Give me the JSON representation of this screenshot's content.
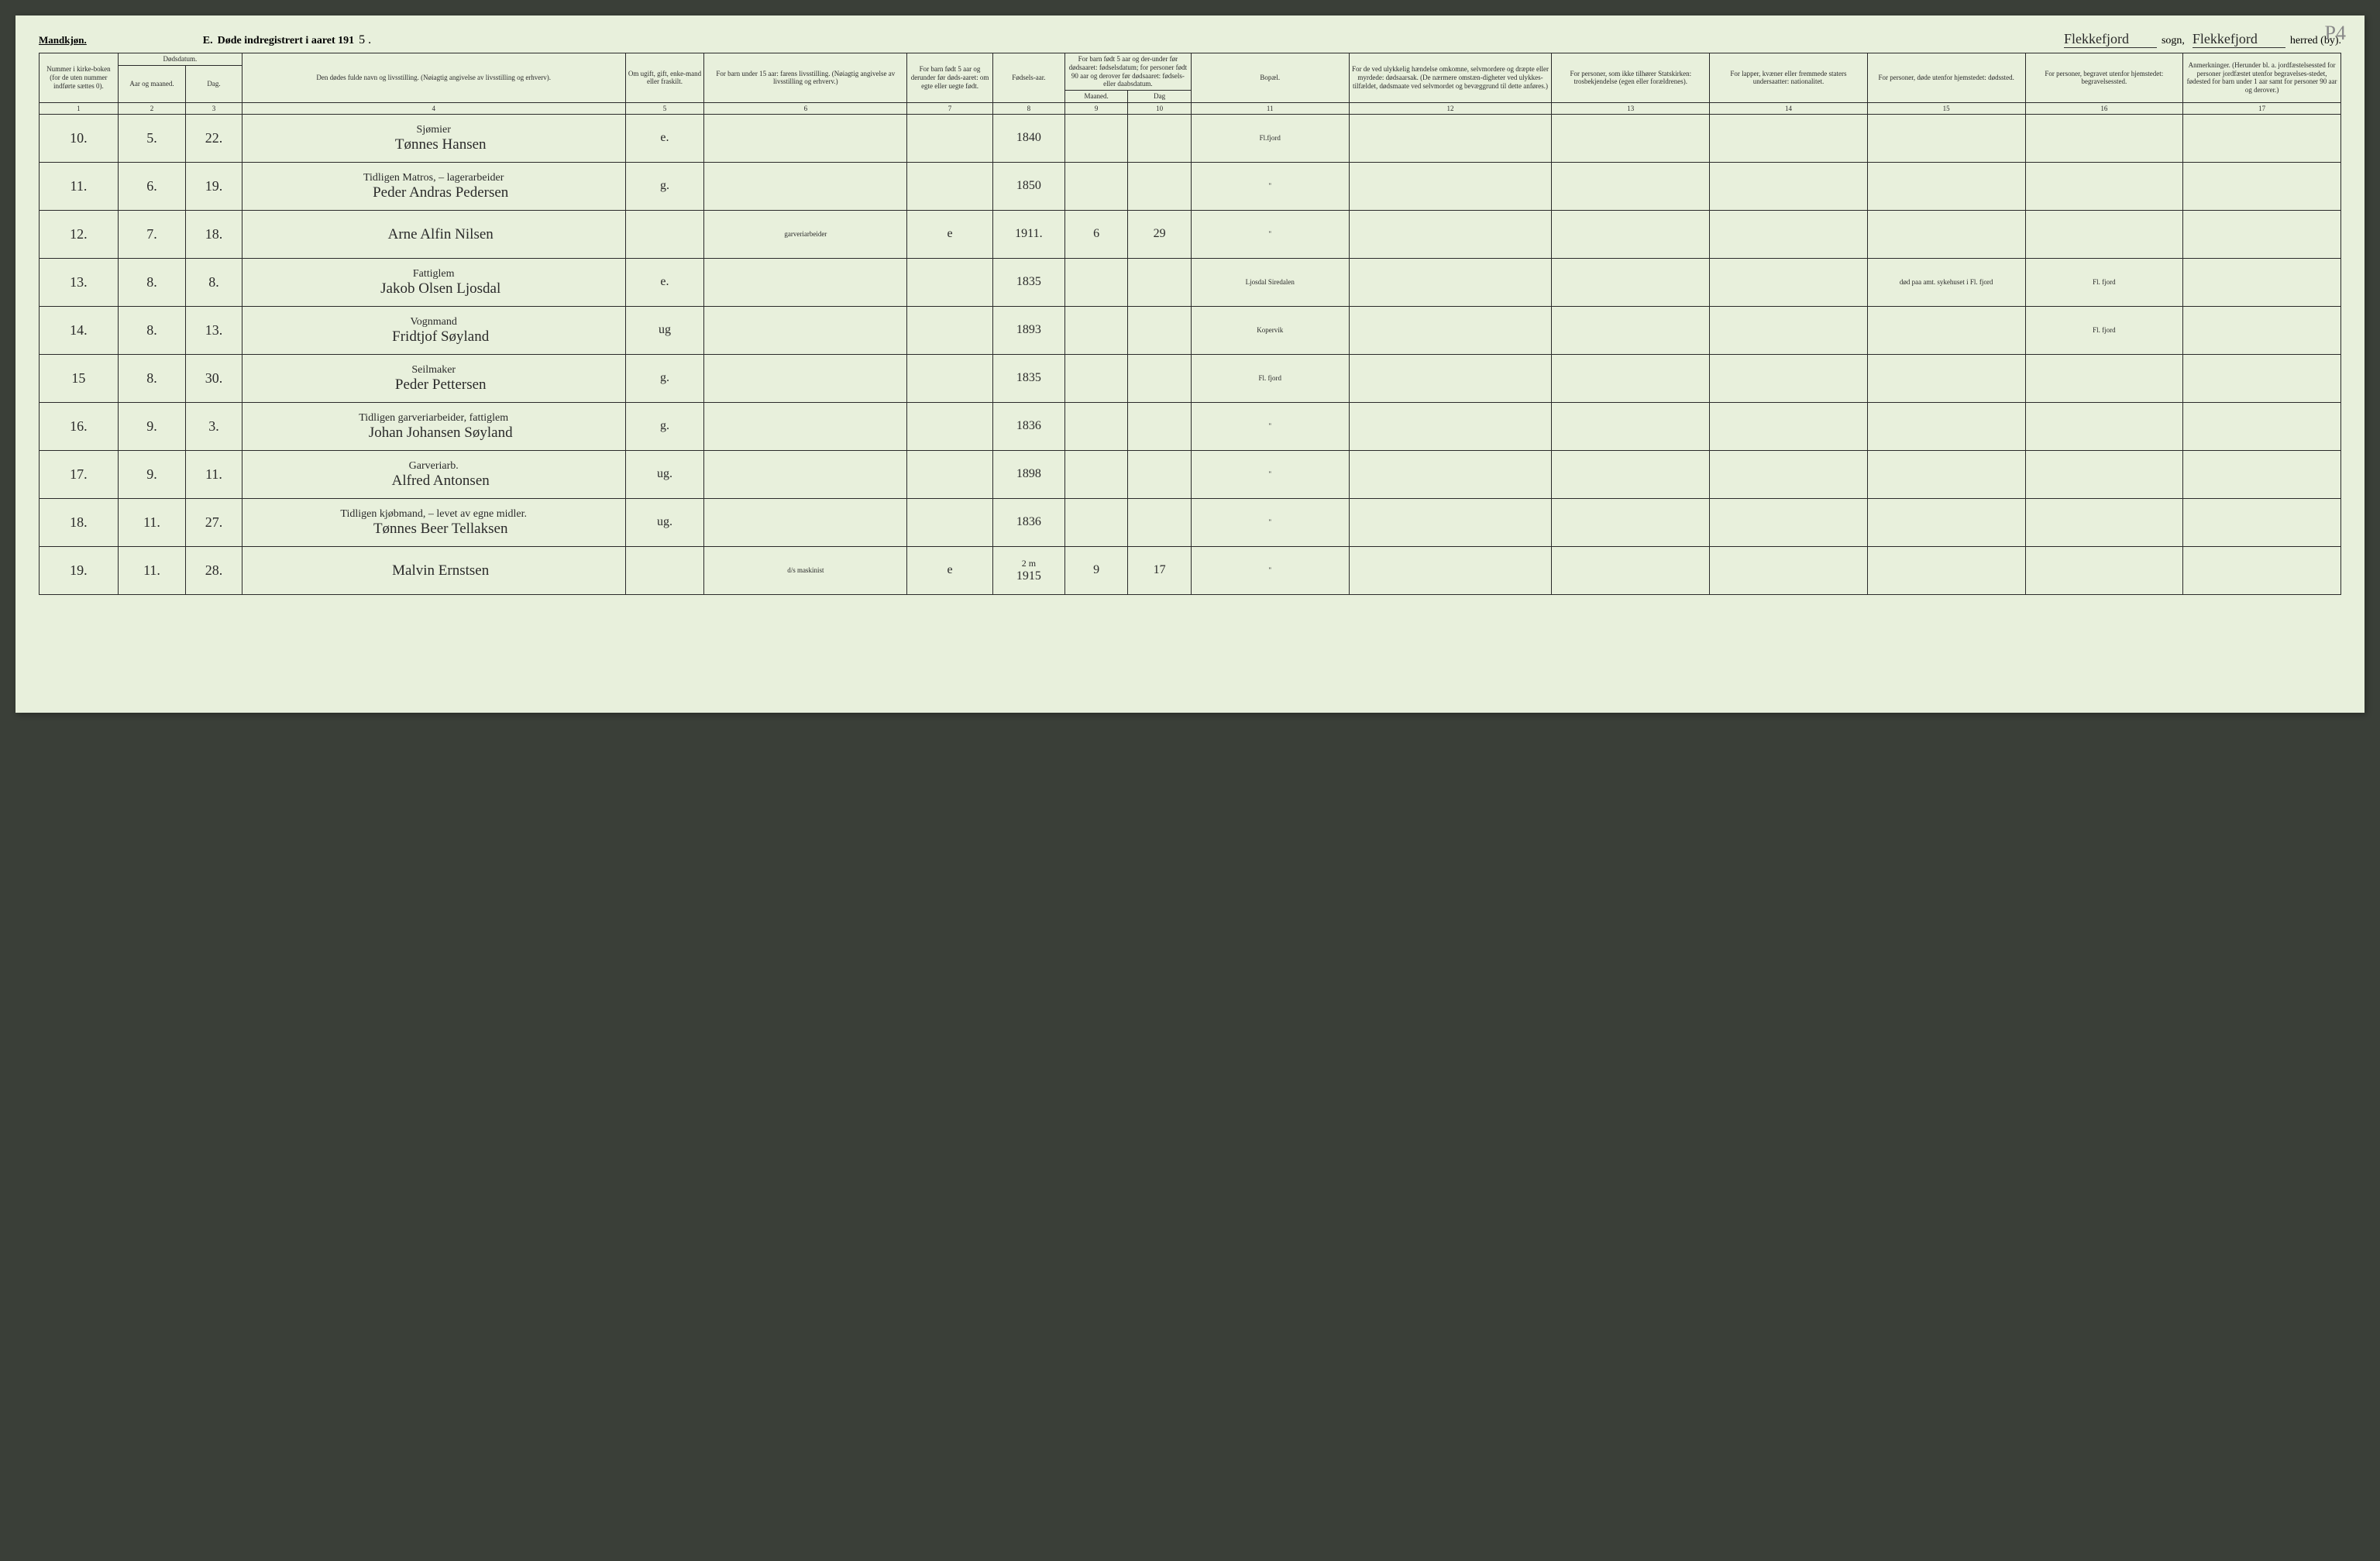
{
  "header": {
    "gender": "Mandkjøn.",
    "title_prefix": "E.",
    "title_main": "Døde indregistrert i aaret 191",
    "year_suffix": "5 .",
    "sogn_value": "Flekkefjord",
    "sogn_label": "sogn,",
    "herred_value": "Flekkefjord",
    "herred_label": "herred (by).",
    "page_corner": "P4"
  },
  "columns": {
    "c1": "Nummer i kirke-boken (for de uten nummer indførte sættes 0).",
    "c2_group": "Dødsdatum.",
    "c2": "Aar og maaned.",
    "c3": "Dag.",
    "c4": "Den dødes fulde navn og livsstilling.\n(Nøiagtig angivelse av livsstilling og erhverv).",
    "c5": "Om ugift, gift, enke-mand eller fraskilt.",
    "c6": "For barn under 15 aar:\nfarens livsstilling.\n(Nøiagtig angivelse av livsstilling og erhverv.)",
    "c7": "For barn født 5 aar og derunder før døds-aaret: om egte eller uegte født.",
    "c8": "Fødsels-aar.",
    "c9_10_group": "For barn født 5 aar og der-under før dødsaaret: fødselsdatum; for personer født 90 aar og derover før dødsaaret: fødsels- eller daabsdatum.",
    "c9": "Maaned.",
    "c10": "Dag",
    "c11": "Bopæl.",
    "c12": "For de ved ulykkelig hændelse omkomne, selvmordere og dræpte eller myrdede: dødsaarsak. (De nærmere omstæn-digheter ved ulykkes-tilfældet, dødsmaate ved selvmordet og bevæggrund til dette anføres.)",
    "c13": "For personer, som ikke tilhører Statskirken: trosbekjendelse (egen eller forældrenes).",
    "c14": "For lapper, kvæner eller fremmede staters undersaatter: nationalitet.",
    "c15": "For personer, døde utenfor hjemstedet: dødssted.",
    "c16": "For personer, begravet utenfor hjemstedet: begravelsessted.",
    "c17": "Anmerkninger. (Herunder bl. a. jordfæstelsessted for personer jordfæstet utenfor begravelses-stedet, fødested for barn under 1 aar samt for personer 90 aar og derover.)"
  },
  "colnums": [
    "1",
    "2",
    "3",
    "4",
    "5",
    "6",
    "7",
    "8",
    "9",
    "10",
    "11",
    "12",
    "13",
    "14",
    "15",
    "16",
    "17"
  ],
  "rows": [
    {
      "num": "10.",
      "aar": "5.",
      "dag": "22.",
      "occupation": "Sjømier",
      "name": "Tønnes Hansen",
      "status": "e.",
      "c6": "",
      "c7": "",
      "c8": "1840",
      "c9": "",
      "c10": "",
      "c11": "Fl.fjord",
      "c12": "",
      "c13": "",
      "c14": "",
      "c15": "",
      "c16": "",
      "c17": ""
    },
    {
      "num": "11.",
      "aar": "6.",
      "dag": "19.",
      "occupation": "Tidligen Matros, – lagerarbeider",
      "name": "Peder Andras Pedersen",
      "status": "g.",
      "c6": "",
      "c7": "",
      "c8": "1850",
      "c9": "",
      "c10": "",
      "c11": "\"",
      "c12": "",
      "c13": "",
      "c14": "",
      "c15": "",
      "c16": "",
      "c17": ""
    },
    {
      "num": "12.",
      "aar": "7.",
      "dag": "18.",
      "occupation": "",
      "name": "Arne Alfin Nilsen",
      "status": "",
      "c6": "garveriarbeider",
      "c7": "e",
      "c8": "1911.",
      "c9": "6",
      "c10": "29",
      "c11": "\"",
      "c12": "",
      "c13": "",
      "c14": "",
      "c15": "",
      "c16": "",
      "c17": ""
    },
    {
      "num": "13.",
      "aar": "8.",
      "dag": "8.",
      "occupation": "Fattiglem",
      "name": "Jakob Olsen Ljosdal",
      "status": "e.",
      "c6": "",
      "c7": "",
      "c8": "1835",
      "c9": "",
      "c10": "",
      "c11": "Ljosdal Siredalen",
      "c12": "",
      "c13": "",
      "c14": "",
      "c15": "død paa amt. sykehuset i Fl. fjord",
      "c16": "Fl. fjord",
      "c17": ""
    },
    {
      "num": "14.",
      "aar": "8.",
      "dag": "13.",
      "occupation": "Vognmand",
      "name": "Fridtjof Søyland",
      "status": "ug",
      "c6": "",
      "c7": "",
      "c8": "1893",
      "c9": "",
      "c10": "",
      "c11": "Kopervik",
      "c12": "",
      "c13": "",
      "c14": "",
      "c15": "",
      "c16": "Fl. fjord",
      "c17": ""
    },
    {
      "num": "15",
      "aar": "8.",
      "dag": "30.",
      "occupation": "Seilmaker",
      "name": "Peder Pettersen",
      "status": "g.",
      "c6": "",
      "c7": "",
      "c8": "1835",
      "c9": "",
      "c10": "",
      "c11": "Fl. fjord",
      "c12": "",
      "c13": "",
      "c14": "",
      "c15": "",
      "c16": "",
      "c17": ""
    },
    {
      "num": "16.",
      "aar": "9.",
      "dag": "3.",
      "occupation": "Tidligen garveriarbeider, fattiglem",
      "name": "Johan Johansen Søyland",
      "status": "g.",
      "c6": "",
      "c7": "",
      "c8": "1836",
      "c9": "",
      "c10": "",
      "c11": "\"",
      "c12": "",
      "c13": "",
      "c14": "",
      "c15": "",
      "c16": "",
      "c17": ""
    },
    {
      "num": "17.",
      "aar": "9.",
      "dag": "11.",
      "occupation": "Garveriarb.",
      "name": "Alfred Antonsen",
      "status": "ug.",
      "c6": "",
      "c7": "",
      "c8": "1898",
      "c9": "",
      "c10": "",
      "c11": "\"",
      "c12": "",
      "c13": "",
      "c14": "",
      "c15": "",
      "c16": "",
      "c17": ""
    },
    {
      "num": "18.",
      "aar": "11.",
      "dag": "27.",
      "occupation": "Tidligen kjøbmand, – levet av egne midler.",
      "name": "Tønnes Beer Tellaksen",
      "status": "ug.",
      "c6": "",
      "c7": "",
      "c8": "1836",
      "c9": "",
      "c10": "",
      "c11": "\"",
      "c12": "",
      "c13": "",
      "c14": "",
      "c15": "",
      "c16": "",
      "c17": ""
    },
    {
      "num": "19.",
      "aar": "11.",
      "dag": "28.",
      "occupation": "",
      "name": "Malvin Ernstsen",
      "status": "",
      "c6": "d/s maskinist",
      "c7": "e",
      "c8": "1915",
      "c8_top": "2 m",
      "c9": "9",
      "c10": "17",
      "c11": "\"",
      "c12": "",
      "c13": "",
      "c14": "",
      "c15": "",
      "c16": "",
      "c17": ""
    }
  ]
}
